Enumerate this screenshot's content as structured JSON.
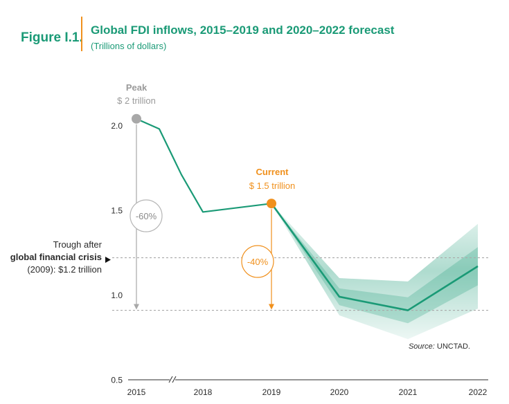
{
  "figure": {
    "label": "Figure I.1.",
    "title": "Global FDI inflows, 2015–2019 and 2020–2022 forecast",
    "subtitle": "(Trillions of dollars)"
  },
  "colors": {
    "green": "#1a9a76",
    "orange": "#f0901c",
    "gray": "#a8a8a8",
    "dark": "#2b2b2b"
  },
  "annotations": {
    "peak_label": "Peak",
    "peak_value": "$ 2 trillion",
    "current_label": "Current",
    "current_value": "$ 1.5 trillion",
    "peak_drop": "-60%",
    "current_drop": "-40%",
    "trough_line1": "Trough after",
    "trough_line2": "global financial crisis",
    "trough_line3": "(2009): $1.2 trillion",
    "source_label": "Source:",
    "source_value": "UNCTAD."
  },
  "chart_data": {
    "type": "line",
    "title": "Global FDI inflows, 2015–2019 and 2020–2022 forecast",
    "ylabel": "(Trillions of dollars)",
    "ylim": [
      0.5,
      2.1
    ],
    "yticks": [
      0.5,
      1.0,
      1.5,
      2.0
    ],
    "ytick_labels": [
      "0.5",
      "1.0",
      "1.5",
      "2.0"
    ],
    "xticks": [
      "2015",
      "2018",
      "2019",
      "2020",
      "2021",
      "2022"
    ],
    "x_axis_break": "between 2015 and 2018",
    "series": [
      {
        "kind": "actual",
        "points": [
          {
            "x": 2015,
            "y": 2.04
          },
          {
            "x": 2016,
            "y": 1.98
          },
          {
            "x": 2017,
            "y": 1.71
          },
          {
            "x": 2018,
            "y": 1.49
          },
          {
            "x": 2019,
            "y": 1.54
          }
        ]
      },
      {
        "kind": "forecast",
        "points": [
          {
            "x": 2019,
            "y": 1.54
          },
          {
            "x": 2020,
            "y": 0.99
          },
          {
            "x": 2021,
            "y": 0.91
          },
          {
            "x": 2022,
            "y": 1.17
          }
        ],
        "band_upper": [
          1.54,
          1.1,
          1.08,
          1.42
        ],
        "band_lower": [
          1.54,
          0.88,
          0.74,
          0.92
        ]
      }
    ],
    "reference_lines": [
      {
        "y": 1.22
      },
      {
        "y": 0.91
      }
    ],
    "highlights": [
      {
        "x": 2015,
        "y": 2.04
      },
      {
        "x": 2019,
        "y": 1.54
      }
    ]
  }
}
